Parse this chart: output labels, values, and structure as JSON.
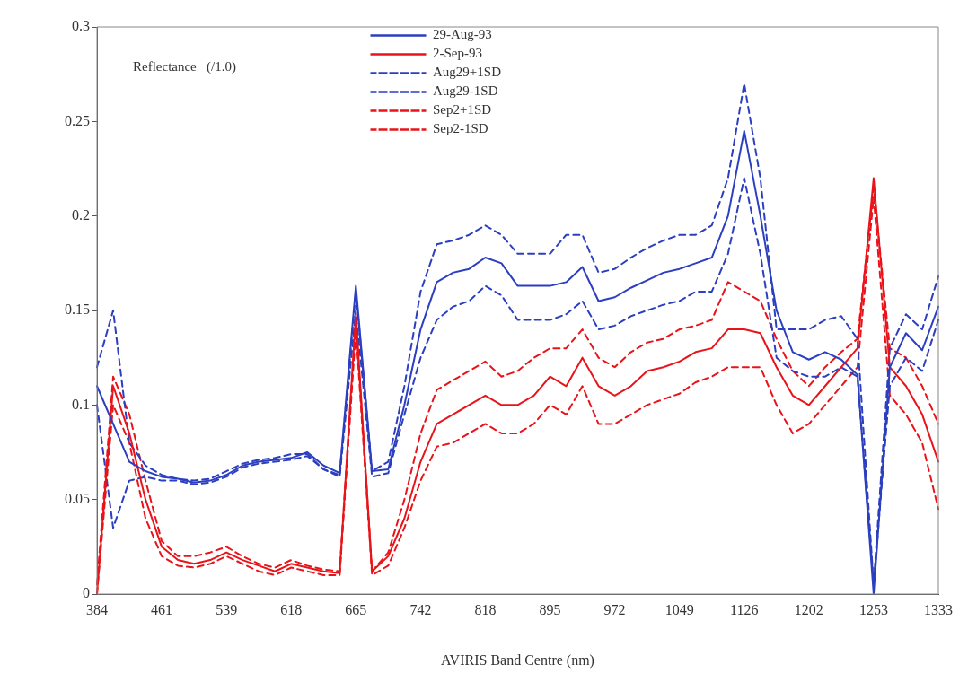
{
  "chart_data": {
    "type": "line",
    "xlabel": "AVIRIS Band Centre (nm)",
    "ylabel": "Reflectance   (/1.0)",
    "categories": [
      "384",
      null,
      null,
      null,
      "461",
      null,
      null,
      null,
      "539",
      null,
      null,
      null,
      "618",
      null,
      null,
      null,
      "665",
      null,
      null,
      null,
      "742",
      null,
      null,
      null,
      "818",
      null,
      null,
      null,
      "895",
      null,
      null,
      null,
      "972",
      null,
      null,
      null,
      "1049",
      null,
      null,
      null,
      "1126",
      null,
      null,
      null,
      "1202",
      null,
      null,
      null,
      "1253",
      null,
      null,
      null,
      "1333"
    ],
    "ylim": [
      0,
      0.3
    ],
    "yticks": [
      0,
      0.05,
      0.1,
      0.15,
      0.2,
      0.25,
      0.3
    ],
    "grid": false,
    "legend": "top",
    "marker": "none",
    "series": [
      {
        "name": "29-Aug-93",
        "color": "#2b3fc0",
        "line_style": "solid",
        "values": [
          0.11,
          0.09,
          0.07,
          0.065,
          0.062,
          0.061,
          0.059,
          0.06,
          0.063,
          0.068,
          0.07,
          0.071,
          0.072,
          0.075,
          0.068,
          0.064,
          0.163,
          0.065,
          0.066,
          0.1,
          0.14,
          0.165,
          0.17,
          0.172,
          0.178,
          0.175,
          0.163,
          0.163,
          0.163,
          0.165,
          0.173,
          0.155,
          0.157,
          0.162,
          0.166,
          0.17,
          0.172,
          0.175,
          0.178,
          0.2,
          0.245,
          0.2,
          0.15,
          0.128,
          0.124,
          0.128,
          0.124,
          0.116,
          0.0,
          0.12,
          0.138,
          0.129,
          0.152
        ]
      },
      {
        "name": "2-Sep-93",
        "color": "#e8141a",
        "line_style": "solid",
        "values": [
          0.0,
          0.11,
          0.085,
          0.05,
          0.025,
          0.018,
          0.016,
          0.018,
          0.022,
          0.018,
          0.015,
          0.012,
          0.016,
          0.014,
          0.012,
          0.011,
          0.148,
          0.012,
          0.02,
          0.04,
          0.07,
          0.09,
          0.095,
          0.1,
          0.105,
          0.1,
          0.1,
          0.105,
          0.115,
          0.11,
          0.125,
          0.11,
          0.105,
          0.11,
          0.118,
          0.12,
          0.123,
          0.128,
          0.13,
          0.14,
          0.14,
          0.138,
          0.12,
          0.105,
          0.1,
          0.11,
          0.12,
          0.13,
          0.22,
          0.12,
          0.11,
          0.095,
          0.07
        ]
      },
      {
        "name": "Aug29+1SD",
        "color": "#2b3fc0",
        "line_style": "dashed",
        "values": [
          0.12,
          0.15,
          0.08,
          0.068,
          0.063,
          0.061,
          0.06,
          0.061,
          0.065,
          0.069,
          0.071,
          0.072,
          0.074,
          0.074,
          0.066,
          0.063,
          0.16,
          0.065,
          0.07,
          0.11,
          0.16,
          0.185,
          0.187,
          0.19,
          0.195,
          0.19,
          0.18,
          0.18,
          0.18,
          0.19,
          0.19,
          0.17,
          0.172,
          0.178,
          0.183,
          0.187,
          0.19,
          0.19,
          0.195,
          0.22,
          0.27,
          0.22,
          0.14,
          0.14,
          0.14,
          0.145,
          0.147,
          0.135,
          0.005,
          0.13,
          0.148,
          0.14,
          0.168
        ]
      },
      {
        "name": "Aug29-1SD",
        "color": "#2b3fc0",
        "line_style": "dashed",
        "values": [
          0.1,
          0.035,
          0.06,
          0.062,
          0.06,
          0.06,
          0.058,
          0.059,
          0.062,
          0.067,
          0.069,
          0.07,
          0.071,
          0.073,
          0.066,
          0.062,
          0.15,
          0.062,
          0.064,
          0.095,
          0.125,
          0.145,
          0.152,
          0.155,
          0.163,
          0.158,
          0.145,
          0.145,
          0.145,
          0.148,
          0.155,
          0.14,
          0.142,
          0.147,
          0.15,
          0.153,
          0.155,
          0.16,
          0.16,
          0.18,
          0.22,
          0.18,
          0.125,
          0.118,
          0.115,
          0.115,
          0.12,
          0.115,
          0.005,
          0.11,
          0.125,
          0.118,
          0.145
        ]
      },
      {
        "name": "Sep2+1SD",
        "color": "#e8141a",
        "line_style": "dashed",
        "values": [
          0.005,
          0.115,
          0.095,
          0.06,
          0.028,
          0.02,
          0.02,
          0.022,
          0.025,
          0.02,
          0.016,
          0.014,
          0.018,
          0.015,
          0.013,
          0.012,
          0.145,
          0.012,
          0.022,
          0.05,
          0.085,
          0.108,
          0.113,
          0.118,
          0.123,
          0.115,
          0.118,
          0.125,
          0.13,
          0.13,
          0.14,
          0.125,
          0.12,
          0.128,
          0.133,
          0.135,
          0.14,
          0.142,
          0.145,
          0.165,
          0.16,
          0.155,
          0.135,
          0.118,
          0.11,
          0.12,
          0.128,
          0.135,
          0.215,
          0.13,
          0.125,
          0.11,
          0.09
        ]
      },
      {
        "name": "Sep2-1SD",
        "color": "#e8141a",
        "line_style": "dashed",
        "values": [
          0.0,
          0.1,
          0.08,
          0.04,
          0.02,
          0.015,
          0.014,
          0.016,
          0.02,
          0.016,
          0.012,
          0.01,
          0.014,
          0.012,
          0.01,
          0.01,
          0.14,
          0.01,
          0.015,
          0.035,
          0.06,
          0.078,
          0.08,
          0.085,
          0.09,
          0.085,
          0.085,
          0.09,
          0.1,
          0.095,
          0.11,
          0.09,
          0.09,
          0.095,
          0.1,
          0.103,
          0.106,
          0.112,
          0.115,
          0.12,
          0.12,
          0.12,
          0.1,
          0.085,
          0.09,
          0.1,
          0.11,
          0.12,
          0.21,
          0.105,
          0.095,
          0.08,
          0.045
        ]
      }
    ]
  }
}
